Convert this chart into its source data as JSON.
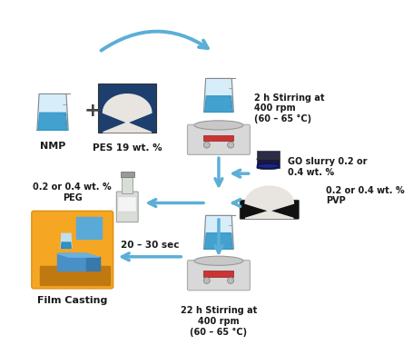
{
  "arrow_color": "#5bafd6",
  "text_color": "#1a1a1a",
  "bg_color": "#ffffff",
  "labels": {
    "nmp": "NMP",
    "pes": "PES 19 wt. %",
    "stirring1": "2 h Stirring at\n400 rpm\n(60 – 65 °C)",
    "go_slurry": "GO slurry 0.2 or\n0.4 wt. %",
    "peg": "0.2 or 0.4 wt. %\nPEG",
    "pvp": "0.2 or 0.4 wt. %\nPVP",
    "stirring2": "22 h Stirring at\n400 rpm\n(60 – 65 °C)",
    "film_casting": "Film Casting",
    "time": "20 – 30 sec"
  },
  "film_bg": "#f5a623",
  "pes_bg": "#1c3f6e",
  "go_cap_color": "#1a2060",
  "go_body_color": "#2a3080",
  "pvp_plate": "#181818",
  "pvp_powder": "#e8e4df",
  "peg_body": "#d8ddd8",
  "beaker_glass": "#d0eaf8",
  "beaker_liquid": "#3399cc",
  "stirrer_body": "#d8d8d8",
  "stirrer_plate": "#c8c8c8",
  "stirrer_display": "#cc3333",
  "plus_color": "#444444"
}
